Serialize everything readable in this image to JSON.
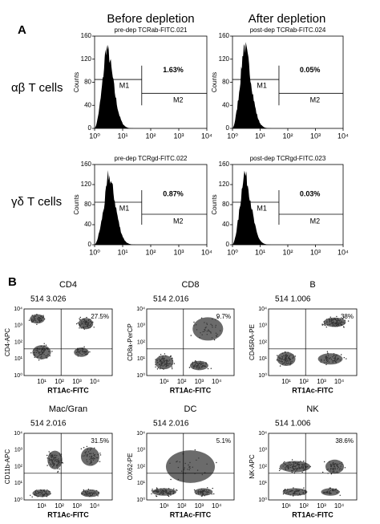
{
  "panel_a": {
    "label": "A",
    "columns": [
      "Before depletion",
      "After depletion"
    ],
    "rows": [
      "αβ T cells",
      "γδ T cells"
    ],
    "y_label": "Counts",
    "yticks": [
      "0",
      "40",
      "80",
      "120",
      "160"
    ],
    "xticks": [
      "10⁰",
      "10¹",
      "10²",
      "10³",
      "10⁴"
    ],
    "plots": [
      {
        "title": "pre-dep TCRab-FITC.021",
        "percent": "1.63%",
        "gates": [
          "M1",
          "M2"
        ]
      },
      {
        "title": "post-dep TCRab-FITC.024",
        "percent": "0.05%",
        "gates": [
          "M1",
          "M2"
        ]
      },
      {
        "title": "pre-dep TCRgd-FITC.022",
        "percent": "0.87%",
        "gates": [
          "M1",
          "M2"
        ]
      },
      {
        "title": "post-dep TCRgd-FITC.023",
        "percent": "0.03%",
        "gates": [
          "M1",
          "M2"
        ]
      }
    ]
  },
  "panel_b": {
    "label": "B",
    "x_label": "RT1Ac-FITC",
    "xticks": [
      "10¹",
      "10²",
      "10³",
      "10⁴"
    ],
    "yticks": [
      "10⁰",
      "10¹",
      "10²",
      "10³",
      "10⁴"
    ],
    "plots": [
      {
        "title": "CD4",
        "header": "514 3.026",
        "percent": "27.5%",
        "y_label": "CD4-APC"
      },
      {
        "title": "CD8",
        "header": "514 2.016",
        "percent": "9.7%",
        "y_label": "CD8a-PerCP"
      },
      {
        "title": "B",
        "header": "514 1.006",
        "percent": "38%",
        "y_label": "CD45RA-PE"
      },
      {
        "title": "Mac/Gran",
        "header": "514 2.016",
        "percent": "31.5%",
        "y_label": "CD11b-APC"
      },
      {
        "title": "DC",
        "header": "514 2.016",
        "percent": "5.1%",
        "y_label": "OX62-PE"
      },
      {
        "title": "NK",
        "header": "514 1.006",
        "percent": "38.6%",
        "y_label": "NK-APC"
      }
    ]
  }
}
